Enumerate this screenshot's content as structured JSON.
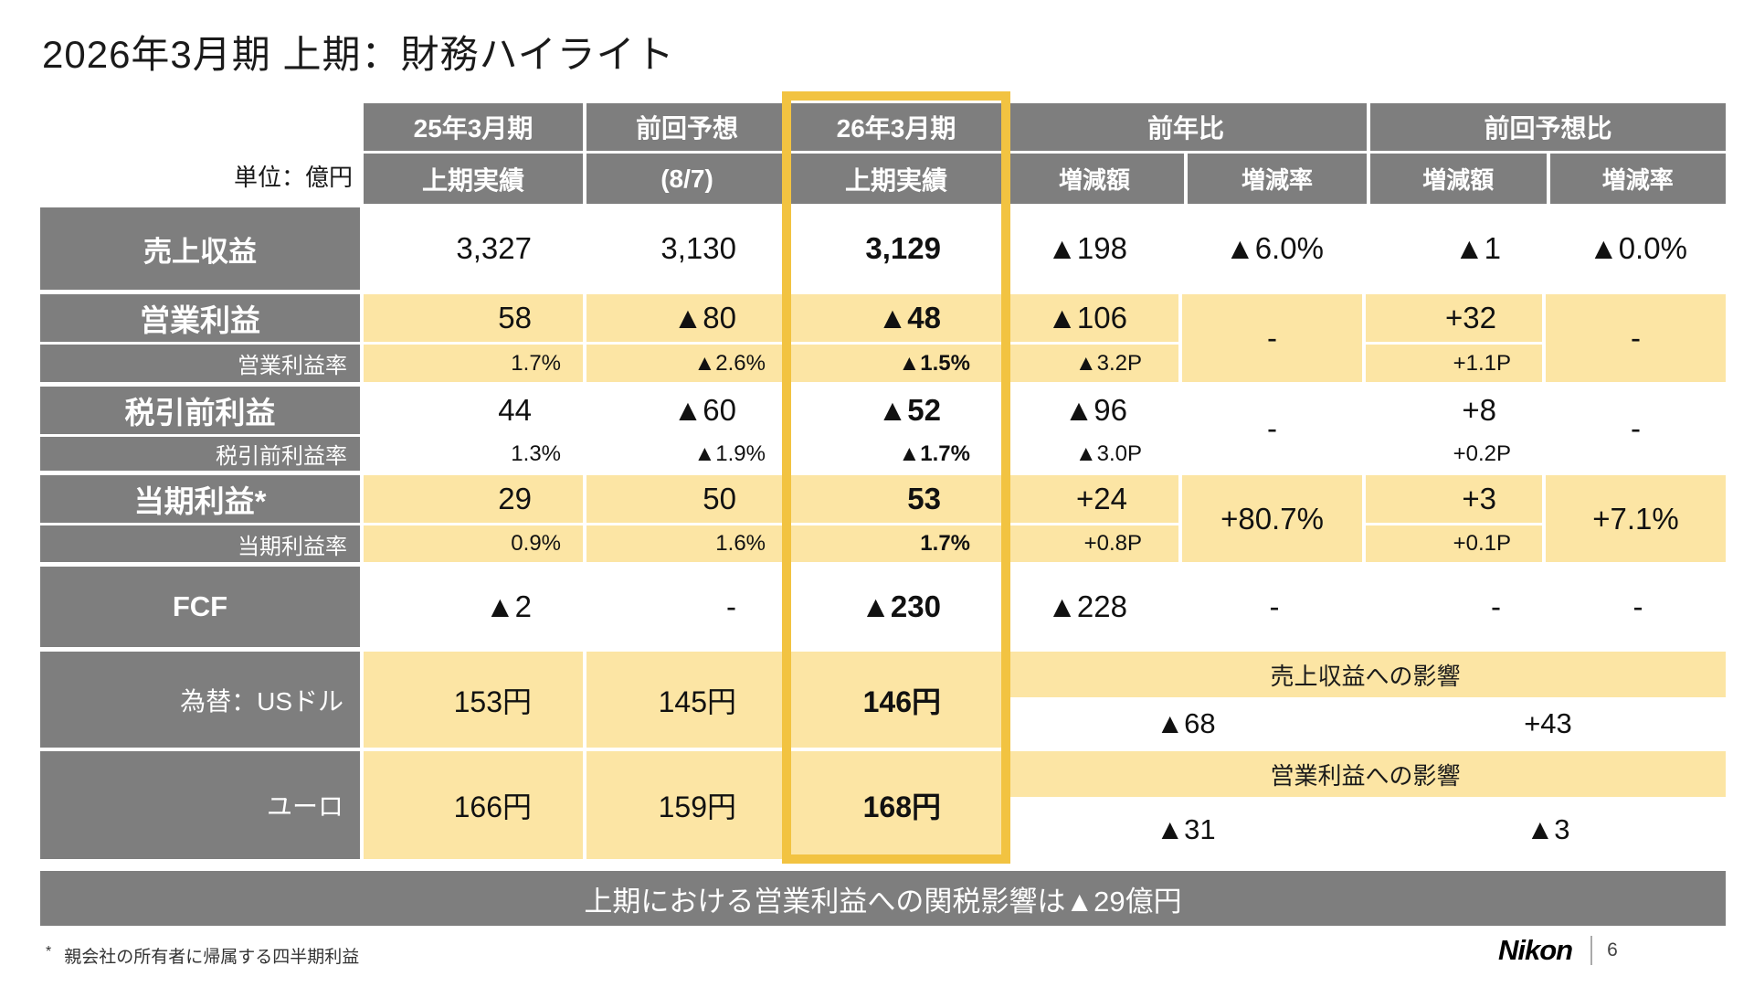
{
  "slide": {
    "title": "2026年3月期 上期：財務ハイライト",
    "unit_label": "単位：億円",
    "banner": "上期における営業利益への関税影響は▲29億円",
    "footnote_mark": "*",
    "footnote": "親会社の所有者に帰属する四半期利益",
    "logo": "Nikon",
    "page_number": "6"
  },
  "colors": {
    "header_gray": "#7E7E7E",
    "cell_yellow": "#FCE5A4",
    "highlight_gold": "#F2C341"
  },
  "header": {
    "c1": {
      "line1": "25年3月期",
      "line2": "上期実績"
    },
    "c2": {
      "line1": "前回予想",
      "line2": "(8/7)"
    },
    "c3": {
      "line1": "26年3月期",
      "line2": "上期実績"
    },
    "yoy": {
      "group": "前年比",
      "amount": "増減額",
      "rate": "増減率"
    },
    "vs_fcst": {
      "group": "前回予想比",
      "amount": "増減額",
      "rate": "増減率"
    }
  },
  "rows": {
    "revenue": {
      "label": "売上収益",
      "c1": "3,327",
      "c2": "3,130",
      "c3": "3,129",
      "c4": "▲198",
      "c5": "▲6.0%",
      "c6": "▲1",
      "c7": "▲0.0%"
    },
    "op": {
      "label": "営業利益",
      "sublabel": "営業利益率",
      "main": {
        "c1": "58",
        "c2": "▲80",
        "c3": "▲48",
        "c4": "▲106",
        "c6": "+32"
      },
      "rate": {
        "c1": "1.7%",
        "c2": "▲2.6%",
        "c3": "▲1.5%",
        "c4": "▲3.2P",
        "c6": "+1.1P"
      },
      "merged": {
        "c5": "-",
        "c7": "-"
      }
    },
    "pretax": {
      "label": "税引前利益",
      "sublabel": "税引前利益率",
      "main": {
        "c1": "44",
        "c2": "▲60",
        "c3": "▲52",
        "c4": "▲96",
        "c6": "+8"
      },
      "rate": {
        "c1": "1.3%",
        "c2": "▲1.9%",
        "c3": "▲1.7%",
        "c4": "▲3.0P",
        "c6": "+0.2P"
      },
      "merged": {
        "c5": "-",
        "c7": "-"
      }
    },
    "net": {
      "label": "当期利益*",
      "sublabel": "当期利益率",
      "main": {
        "c1": "29",
        "c2": "50",
        "c3": "53",
        "c4": "+24",
        "c6": "+3"
      },
      "rate": {
        "c1": "0.9%",
        "c2": "1.6%",
        "c3": "1.7%",
        "c4": "+0.8P",
        "c6": "+0.1P"
      },
      "merged": {
        "c5": "+80.7%",
        "c7": "+7.1%"
      }
    },
    "fcf": {
      "label": "FCF",
      "c1": "▲2",
      "c2": "-",
      "c3": "▲230",
      "c4": "▲228",
      "c5": "-",
      "c6": "-",
      "c7": "-"
    }
  },
  "fx": {
    "usd": {
      "label": "為替：USドル",
      "c1": "153円",
      "c2": "145円",
      "c3": "146円",
      "band": "売上収益への影響",
      "yoy": "▲68",
      "vs_fcst": "+43"
    },
    "eur": {
      "label": "ユーロ",
      "c1": "166円",
      "c2": "159円",
      "c3": "168円",
      "band": "営業利益への影響",
      "yoy": "▲31",
      "vs_fcst": "▲3"
    }
  }
}
